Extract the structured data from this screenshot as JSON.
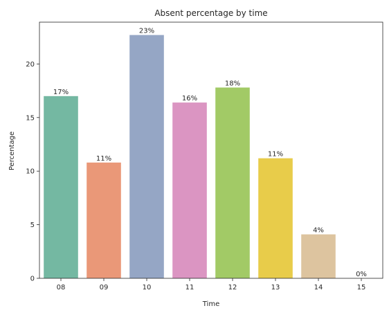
{
  "chart_data": {
    "type": "bar",
    "title": "Absent percentage by time",
    "xlabel": "Time",
    "ylabel": "Percentage",
    "categories": [
      "08",
      "09",
      "10",
      "11",
      "12",
      "13",
      "14",
      "15"
    ],
    "values": [
      17.0,
      10.8,
      22.7,
      16.4,
      17.8,
      11.2,
      4.1,
      0.0
    ],
    "data_labels": [
      "17%",
      "11%",
      "23%",
      "16%",
      "18%",
      "11%",
      "4%",
      "0%"
    ],
    "colors": [
      "#74b8a2",
      "#ea9878",
      "#95a6c5",
      "#db95c2",
      "#a2ca66",
      "#e8cc4a",
      "#ddc49f",
      "#b3b3b3"
    ],
    "yticks": [
      0,
      5,
      10,
      15,
      20
    ],
    "ylim": [
      0,
      23.9
    ],
    "grid": false,
    "legend": "none"
  }
}
